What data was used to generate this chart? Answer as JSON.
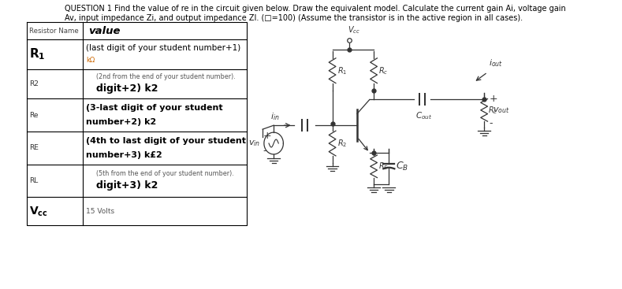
{
  "title_line1": "QUESTION 1 Find the value of re in the circuit given below. Draw the equivalent model. Calculate the current gain Ai, voltage gain",
  "title_line2": "Av, input impedance Zi, and output impedance ZI. (□=100) (Assume the transistor is in the active region in all cases).",
  "title_color": "#000000",
  "bg_color": "#ffffff",
  "text_color": "#000000",
  "table_border_color": "#000000",
  "r1_label": "R₁",
  "r1_val_line1": "(last digit of your student number+1)",
  "r1_val_line2": "kΩ",
  "r2_label": "R2",
  "r2_val_small": "(2nd from the end of your student number).",
  "r2_val_big": "digit+2) k2",
  "re_label": "Re",
  "re_val_line1": "(3-last digit of your student",
  "re_val_line2": "number+2) k2",
  "RE_label": "RE",
  "RE_val_line1": "(4th to last digit of your student",
  "RE_val_line2": "number+3) k£2",
  "rl_label": "RL",
  "rl_val_small": "(5th from the end of your student number).",
  "rl_val_big": "digit+3) k2",
  "vcc_label": "V⁣cc",
  "vcc_val": "15 Volts"
}
